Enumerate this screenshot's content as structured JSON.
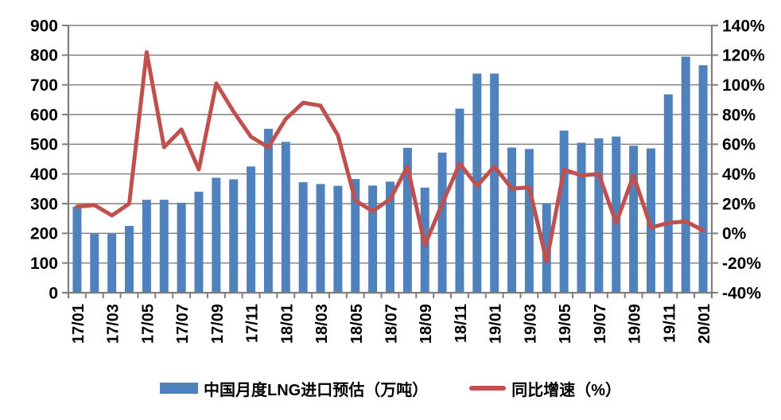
{
  "chart_data": {
    "type": "combo",
    "categories": [
      "17/01",
      "17/02",
      "17/03",
      "17/04",
      "17/05",
      "17/06",
      "17/07",
      "17/08",
      "17/09",
      "17/10",
      "17/11",
      "17/12",
      "18/01",
      "18/02",
      "18/03",
      "18/04",
      "18/05",
      "18/06",
      "18/07",
      "18/08",
      "18/09",
      "18/10",
      "18/11",
      "18/12",
      "19/01",
      "19/02",
      "19/03",
      "19/04",
      "19/05",
      "19/06",
      "19/07",
      "19/08",
      "19/09",
      "19/10",
      "19/11",
      "19/12",
      "20/01"
    ],
    "x_tick_labels_visible": [
      "17/01",
      "17/03",
      "17/05",
      "17/07",
      "17/09",
      "17/11",
      "18/01",
      "18/03",
      "18/05",
      "18/07",
      "18/09",
      "18/11",
      "19/01",
      "19/03",
      "19/05",
      "19/07",
      "19/09",
      "19/11",
      "20/01"
    ],
    "series": [
      {
        "name": "中国月度LNG进口预估（万吨）",
        "type": "bar",
        "axis": "left",
        "color": "#4f81bd",
        "values": [
          290,
          198,
          198,
          225,
          313,
          313,
          303,
          340,
          387,
          382,
          425,
          552,
          508,
          372,
          366,
          360,
          383,
          361,
          374,
          488,
          354,
          472,
          620,
          738,
          738,
          489,
          484,
          300,
          546,
          505,
          520,
          526,
          495,
          486,
          668,
          795,
          766
        ]
      },
      {
        "name": "同比增速（%）",
        "type": "line",
        "axis": "right",
        "color": "#c0504d",
        "values": [
          18,
          19,
          12,
          20,
          122,
          58,
          70,
          43,
          101,
          82,
          65,
          58,
          77,
          88,
          86,
          66,
          22,
          15,
          23,
          45,
          -8,
          20,
          47,
          32,
          45,
          30,
          31,
          -19,
          43,
          39,
          40,
          7,
          39,
          4,
          7,
          8,
          2
        ]
      }
    ],
    "left_axis": {
      "min": 0,
      "max": 900,
      "step": 100,
      "labels": [
        "0",
        "100",
        "200",
        "300",
        "400",
        "500",
        "600",
        "700",
        "800",
        "900"
      ]
    },
    "right_axis": {
      "min": -40,
      "max": 140,
      "step": 20,
      "labels": [
        "-40%",
        "-20%",
        "0%",
        "20%",
        "40%",
        "60%",
        "80%",
        "100%",
        "120%",
        "140%"
      ]
    },
    "grid": true,
    "legend_position": "bottom",
    "colors": {
      "grid": "#7f7f7f",
      "axis": "#7f7f7f",
      "text": "#000000"
    }
  }
}
